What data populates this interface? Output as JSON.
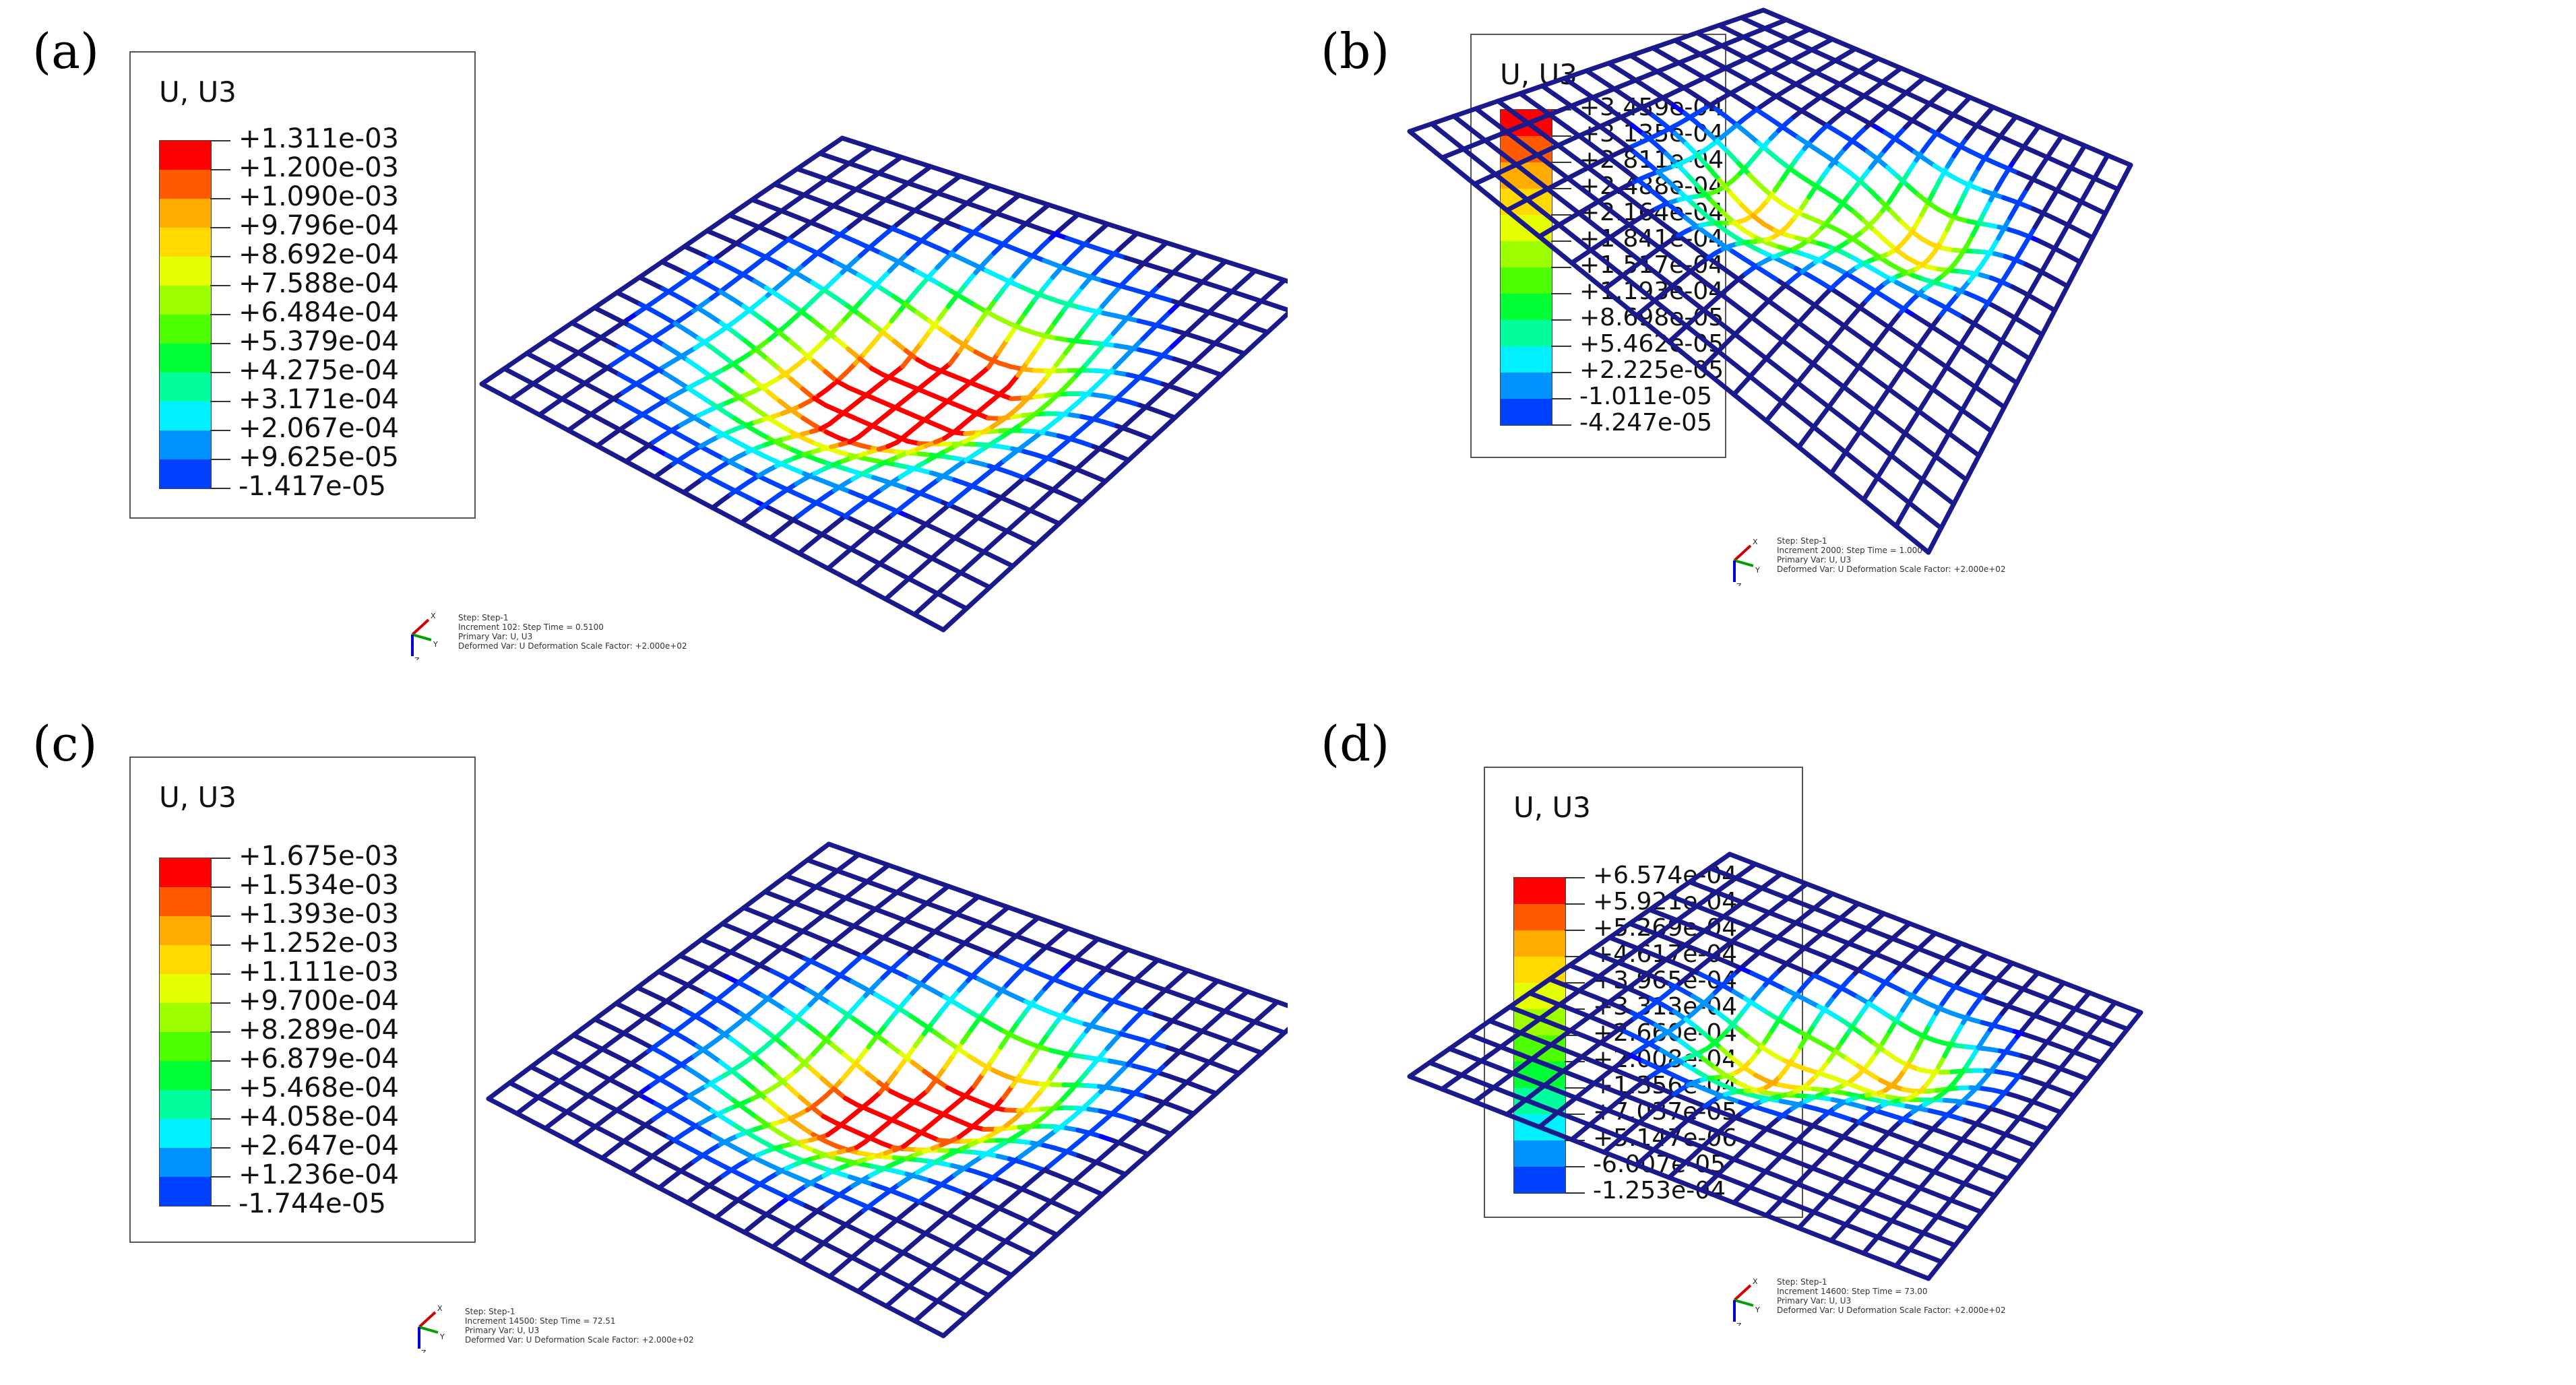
{
  "figure": {
    "panels": [
      {
        "label": "(a)",
        "legend_title": "U, U3",
        "legend_values": [
          "+1.311e-03",
          "+1.200e-03",
          "+1.090e-03",
          "+9.796e-04",
          "+8.692e-04",
          "+7.588e-04",
          "+6.484e-04",
          "+5.379e-04",
          "+4.275e-04",
          "+3.171e-04",
          "+2.067e-04",
          "+9.625e-05",
          "-1.417e-05"
        ],
        "info_lines": [
          "Step: Step-1",
          "Increment    102: Step Time =    0.5100",
          "Primary Var: U, U3",
          "Deformed Var: U   Deformation Scale Factor: +2.000e+02"
        ],
        "triad": [
          "X",
          "Y",
          "Z"
        ]
      },
      {
        "label": "(b)",
        "legend_title": "U, U3",
        "legend_values": [
          "+3.459e-04",
          "+3.135e-04",
          "+2.811e-04",
          "+2.488e-04",
          "+2.164e-04",
          "+1.841e-04",
          "+1.517e-04",
          "+1.193e-04",
          "+8.698e-05",
          "+5.462e-05",
          "+2.225e-05",
          "-1.011e-05",
          "-4.247e-05"
        ],
        "info_lines": [
          "Step: Step-1",
          "Increment   2000: Step Time =    1.000",
          "Primary Var: U, U3",
          "Deformed Var: U   Deformation Scale Factor: +2.000e+02"
        ],
        "triad": [
          "X",
          "Y",
          "Z"
        ]
      },
      {
        "label": "(c)",
        "legend_title": "U, U3",
        "legend_values": [
          "+1.675e-03",
          "+1.534e-03",
          "+1.393e-03",
          "+1.252e-03",
          "+1.111e-03",
          "+9.700e-04",
          "+8.289e-04",
          "+6.879e-04",
          "+5.468e-04",
          "+4.058e-04",
          "+2.647e-04",
          "+1.236e-04",
          "-1.744e-05"
        ],
        "info_lines": [
          "Step: Step-1",
          "Increment  14500: Step Time =    72.51",
          "Primary Var: U, U3",
          "Deformed Var: U   Deformation Scale Factor: +2.000e+02"
        ],
        "triad": [
          "X",
          "Y",
          "Z"
        ]
      },
      {
        "label": "(d)",
        "legend_title": "U, U3",
        "legend_values": [
          "+6.574e-04",
          "+5.921e-04",
          "+5.269e-04",
          "+4.617e-04",
          "+3.965e-04",
          "+3.313e-04",
          "+2.660e-04",
          "+2.008e-04",
          "+1.356e-04",
          "+7.037e-05",
          "+5.147e-06",
          "-6.007e-05",
          "-1.253e-04"
        ],
        "info_lines": [
          "Step: Step-1",
          "Increment  14600: Step Time =    73.00",
          "Primary Var: U, U3",
          "Deformed Var: U   Deformation Scale Factor: +2.000e+02"
        ],
        "triad": [
          "X",
          "Y",
          "Z"
        ]
      }
    ],
    "contour_colors": [
      "#ff0000",
      "#ff5a00",
      "#ffab00",
      "#ffd900",
      "#e6ff00",
      "#9cff00",
      "#4dff00",
      "#00ff35",
      "#00ff9c",
      "#00f0ff",
      "#0093ff",
      "#0040ff",
      "#0000ff"
    ],
    "mesh_color": "#1a1a8c"
  }
}
